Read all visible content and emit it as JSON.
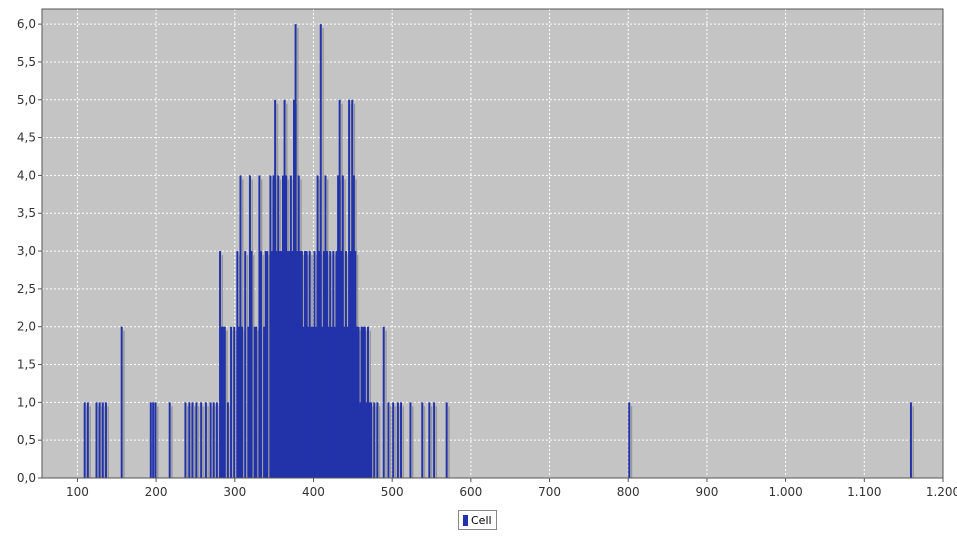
{
  "chart_data": {
    "type": "bar",
    "title": "",
    "xlabel": "",
    "ylabel": "",
    "xlim": [
      55,
      1200
    ],
    "ylim": [
      0,
      6.2
    ],
    "grid": true,
    "legend_position": "bottom-center",
    "x_ticks": [
      "100",
      "200",
      "300",
      "400",
      "500",
      "600",
      "700",
      "800",
      "900",
      "1.000",
      "1.100",
      "1.200"
    ],
    "x_tick_values": [
      100,
      200,
      300,
      400,
      500,
      600,
      700,
      800,
      900,
      1000,
      1100,
      1200
    ],
    "y_ticks": [
      "0,0",
      "0,5",
      "1,0",
      "1,5",
      "2,0",
      "2,5",
      "3,0",
      "3,5",
      "4,0",
      "4,5",
      "5,0",
      "5,5",
      "6,0"
    ],
    "y_tick_values": [
      0,
      0.5,
      1,
      1.5,
      2,
      2.5,
      3,
      3.5,
      4,
      4.5,
      5,
      5.5,
      6
    ],
    "series": [
      {
        "name": "Cell",
        "color": "#2233aa",
        "x": [
          108,
          112,
          123,
          127,
          131,
          135,
          155,
          192,
          195,
          198,
          216,
          236,
          241,
          245,
          250,
          256,
          262,
          268,
          272,
          276,
          280,
          282,
          284,
          286,
          290,
          294,
          298,
          302,
          304,
          306,
          308,
          312,
          316,
          318,
          320,
          324,
          326,
          330,
          332,
          336,
          338,
          340,
          344,
          346,
          348,
          350,
          352,
          354,
          356,
          358,
          360,
          362,
          364,
          366,
          368,
          370,
          372,
          374,
          376,
          378,
          380,
          382,
          384,
          386,
          388,
          390,
          392,
          394,
          396,
          398,
          400,
          402,
          404,
          406,
          408,
          410,
          412,
          414,
          416,
          418,
          420,
          422,
          424,
          426,
          428,
          430,
          432,
          434,
          436,
          438,
          440,
          442,
          444,
          446,
          448,
          450,
          452,
          454,
          456,
          458,
          460,
          462,
          464,
          466,
          468,
          470,
          472,
          476,
          480,
          488,
          494,
          500,
          506,
          510,
          522,
          537,
          546,
          552,
          568,
          800,
          1158
        ],
        "values": [
          1,
          1,
          1,
          1,
          1,
          1,
          2,
          1,
          1,
          1,
          1,
          1,
          1,
          1,
          1,
          1,
          1,
          1,
          1,
          1,
          3,
          2,
          2,
          2,
          1,
          2,
          2,
          3,
          2,
          4,
          2,
          3,
          2,
          4,
          3,
          2,
          2,
          4,
          3,
          2,
          3,
          3,
          4,
          3,
          4,
          5,
          3,
          4,
          3,
          3,
          4,
          5,
          4,
          3,
          3,
          4,
          3,
          5,
          6,
          3,
          4,
          3,
          3,
          2,
          3,
          3,
          2,
          3,
          2,
          2,
          3,
          2,
          4,
          3,
          6,
          2,
          3,
          4,
          3,
          2,
          3,
          2,
          3,
          2,
          3,
          4,
          5,
          3,
          4,
          2,
          3,
          2,
          5,
          3,
          5,
          4,
          3,
          2,
          2,
          1,
          2,
          2,
          2,
          1,
          2,
          1,
          1,
          1,
          1,
          2,
          1,
          1,
          1,
          1,
          1,
          1,
          1,
          1,
          1,
          1,
          1
        ]
      }
    ]
  }
}
